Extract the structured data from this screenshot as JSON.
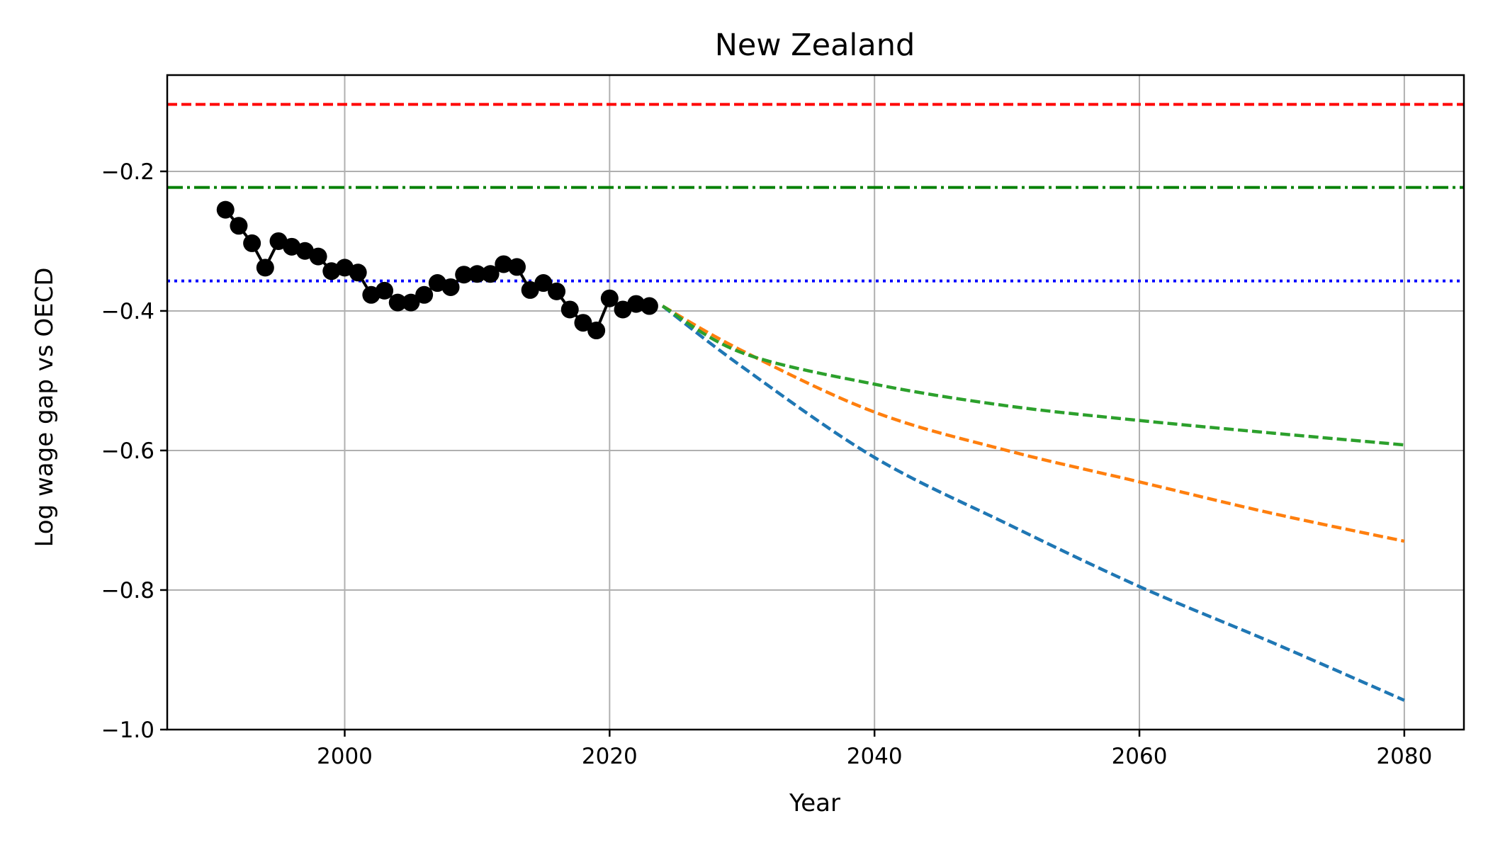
{
  "chart_data": {
    "type": "line",
    "title": "New Zealand",
    "xlabel": "Year",
    "ylabel": "Log wage gap vs OECD",
    "xlim": [
      1986.6,
      2084.5
    ],
    "ylim": [
      -1.0,
      -0.062
    ],
    "xticks": [
      2000,
      2020,
      2040,
      2060,
      2080
    ],
    "yticks": [
      -1.0,
      -0.8,
      -0.6,
      -0.4,
      -0.2
    ],
    "ytick_labels": [
      "−1.0",
      "−0.8",
      "−0.6",
      "−0.4",
      "−0.2"
    ],
    "grid": true,
    "legend": "none",
    "reference_lines": [
      {
        "y": -0.104,
        "color": "#ff0000",
        "style": "dashed"
      },
      {
        "y": -0.223,
        "color": "#008000",
        "style": "dashdot"
      },
      {
        "y": -0.357,
        "color": "#0000ff",
        "style": "dotted"
      }
    ],
    "history": {
      "color": "#000000",
      "x": [
        1991,
        1992,
        1993,
        1994,
        1995,
        1996,
        1997,
        1998,
        1999,
        2000,
        2001,
        2002,
        2003,
        2004,
        2005,
        2006,
        2007,
        2008,
        2009,
        2010,
        2011,
        2012,
        2013,
        2014,
        2015,
        2016,
        2017,
        2018,
        2019,
        2020,
        2021,
        2022,
        2023
      ],
      "y": [
        -0.255,
        -0.278,
        -0.303,
        -0.338,
        -0.3,
        -0.308,
        -0.314,
        -0.322,
        -0.343,
        -0.338,
        -0.345,
        -0.377,
        -0.371,
        -0.388,
        -0.388,
        -0.377,
        -0.36,
        -0.366,
        -0.348,
        -0.347,
        -0.347,
        -0.333,
        -0.337,
        -0.37,
        -0.36,
        -0.372,
        -0.398,
        -0.417,
        -0.428,
        -0.382,
        -0.398,
        -0.39,
        -0.393
      ]
    },
    "series": [
      {
        "color": "#1f77b4",
        "style": "dashed",
        "x": [
          2024,
          2030,
          2040,
          2050,
          2060,
          2070,
          2080
        ],
        "y": [
          -0.393,
          -0.48,
          -0.61,
          -0.705,
          -0.795,
          -0.875,
          -0.958
        ]
      },
      {
        "color": "#ff7f0e",
        "style": "dashed",
        "x": [
          2024,
          2030,
          2040,
          2050,
          2060,
          2070,
          2080
        ],
        "y": [
          -0.393,
          -0.457,
          -0.545,
          -0.6,
          -0.645,
          -0.69,
          -0.73
        ]
      },
      {
        "color": "#2ca02c",
        "style": "dashed",
        "x": [
          2024,
          2030,
          2040,
          2050,
          2060,
          2070,
          2080
        ],
        "y": [
          -0.393,
          -0.46,
          -0.505,
          -0.536,
          -0.557,
          -0.575,
          -0.592
        ]
      }
    ]
  }
}
